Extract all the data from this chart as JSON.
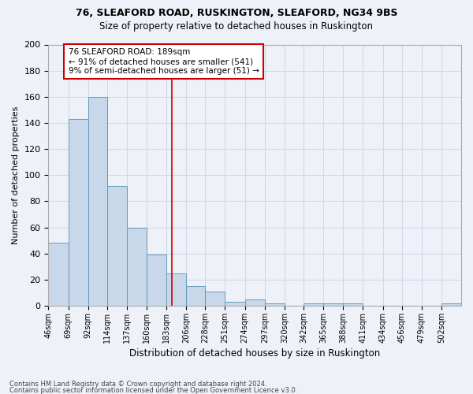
{
  "title1": "76, SLEAFORD ROAD, RUSKINGTON, SLEAFORD, NG34 9BS",
  "title2": "Size of property relative to detached houses in Ruskington",
  "xlabel": "Distribution of detached houses by size in Ruskington",
  "ylabel": "Number of detached properties",
  "footnote1": "Contains HM Land Registry data © Crown copyright and database right 2024.",
  "footnote2": "Contains public sector information licensed under the Open Government Licence v3.0.",
  "bar_labels": [
    "46sqm",
    "69sqm",
    "92sqm",
    "114sqm",
    "137sqm",
    "160sqm",
    "183sqm",
    "206sqm",
    "228sqm",
    "251sqm",
    "274sqm",
    "297sqm",
    "320sqm",
    "342sqm",
    "365sqm",
    "388sqm",
    "411sqm",
    "434sqm",
    "456sqm",
    "479sqm",
    "502sqm"
  ],
  "bar_heights": [
    48,
    143,
    160,
    92,
    60,
    39,
    25,
    15,
    11,
    3,
    5,
    2,
    0,
    2,
    2,
    2,
    0,
    0,
    0,
    0,
    2
  ],
  "bar_color": "#c8d8ea",
  "bar_edge_color": "#6699bb",
  "annotation_text": "76 SLEAFORD ROAD: 189sqm\n← 91% of detached houses are smaller (541)\n9% of semi-detached houses are larger (51) →",
  "annotation_box_color": "#ffffff",
  "annotation_box_edge": "#cc0000",
  "vline_x": 189,
  "vline_color": "#cc0000",
  "bin_edges": [
    46,
    69,
    92,
    114,
    137,
    160,
    183,
    206,
    228,
    251,
    274,
    297,
    320,
    342,
    365,
    388,
    411,
    434,
    456,
    479,
    502,
    525
  ],
  "ylim": [
    0,
    200
  ],
  "yticks": [
    0,
    20,
    40,
    60,
    80,
    100,
    120,
    140,
    160,
    180,
    200
  ],
  "grid_color": "#d0d8e8",
  "bg_color": "#eef2f8"
}
